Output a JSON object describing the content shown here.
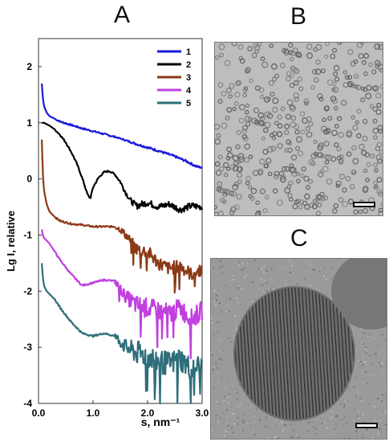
{
  "panels": {
    "a_label": "A",
    "b_label": "B",
    "c_label": "C"
  },
  "chart_data": {
    "type": "line",
    "title": "",
    "xlabel": "s, nm⁻¹",
    "ylabel": "Lg I, relative",
    "xlim": [
      0,
      3.0
    ],
    "ylim": [
      -4,
      2.5
    ],
    "x_ticks": [
      "0.0",
      "1.0",
      "2.0",
      "3.0"
    ],
    "y_ticks": [
      "-4",
      "-3",
      "-2",
      "-1",
      "0",
      "1",
      "2"
    ],
    "grid": false,
    "legend_position": "top-right",
    "series": [
      {
        "name": "1",
        "color": "#1a1adb",
        "x": [
          0.06,
          0.08,
          0.1,
          0.15,
          0.2,
          0.3,
          0.4,
          0.6,
          0.8,
          1.0,
          1.2,
          1.5,
          1.8,
          2.0,
          2.2,
          2.5,
          2.7,
          2.9,
          3.0
        ],
        "y": [
          1.7,
          1.45,
          1.3,
          1.18,
          1.12,
          1.07,
          1.02,
          0.96,
          0.9,
          0.85,
          0.8,
          0.72,
          0.62,
          0.56,
          0.5,
          0.4,
          0.32,
          0.22,
          0.2
        ]
      },
      {
        "name": "2",
        "color": "#000000",
        "x": [
          0.06,
          0.1,
          0.2,
          0.3,
          0.4,
          0.5,
          0.6,
          0.7,
          0.8,
          0.9,
          0.95,
          1.0,
          1.1,
          1.2,
          1.3,
          1.4,
          1.5,
          1.6,
          1.7,
          1.8,
          2.0,
          2.2,
          2.4,
          2.6,
          2.8,
          3.0
        ],
        "y": [
          1.0,
          1.0,
          0.95,
          0.88,
          0.78,
          0.65,
          0.48,
          0.28,
          0.02,
          -0.28,
          -0.35,
          -0.15,
          0.02,
          0.12,
          0.14,
          0.08,
          -0.05,
          -0.25,
          -0.4,
          -0.48,
          -0.42,
          -0.5,
          -0.45,
          -0.55,
          -0.48,
          -0.5
        ]
      },
      {
        "name": "3",
        "color": "#8b3a16",
        "x": [
          0.06,
          0.08,
          0.1,
          0.15,
          0.2,
          0.3,
          0.4,
          0.6,
          0.8,
          1.0,
          1.2,
          1.4,
          1.5,
          1.6,
          1.8,
          2.0,
          2.2,
          2.4,
          2.6,
          2.8,
          3.0
        ],
        "y": [
          0.7,
          0.1,
          -0.2,
          -0.45,
          -0.58,
          -0.68,
          -0.75,
          -0.8,
          -0.82,
          -0.85,
          -0.85,
          -0.85,
          -0.9,
          -1.0,
          -1.25,
          -1.3,
          -1.5,
          -1.6,
          -1.55,
          -1.7,
          -1.6
        ]
      },
      {
        "name": "4",
        "color": "#c040e0",
        "x": [
          0.06,
          0.08,
          0.1,
          0.15,
          0.2,
          0.3,
          0.4,
          0.6,
          0.8,
          1.0,
          1.2,
          1.4,
          1.6,
          1.8,
          2.0,
          2.2,
          2.4,
          2.6,
          2.8,
          3.0
        ],
        "y": [
          -0.9,
          -1.0,
          -1.05,
          -1.1,
          -1.15,
          -1.3,
          -1.45,
          -1.7,
          -1.9,
          -1.85,
          -1.8,
          -1.82,
          -2.1,
          -2.25,
          -2.3,
          -2.35,
          -2.4,
          -2.3,
          -2.5,
          -2.35
        ]
      },
      {
        "name": "5",
        "color": "#2e6e7a",
        "x": [
          0.06,
          0.08,
          0.1,
          0.15,
          0.2,
          0.3,
          0.4,
          0.6,
          0.8,
          1.0,
          1.2,
          1.4,
          1.6,
          1.8,
          2.0,
          2.2,
          2.4,
          2.6,
          2.8,
          3.0
        ],
        "y": [
          -1.5,
          -1.75,
          -1.9,
          -2.0,
          -2.05,
          -2.15,
          -2.3,
          -2.55,
          -2.75,
          -2.8,
          -2.75,
          -2.8,
          -3.0,
          -3.1,
          -3.15,
          -3.25,
          -3.3,
          -3.2,
          -3.4,
          -3.3
        ]
      }
    ]
  }
}
